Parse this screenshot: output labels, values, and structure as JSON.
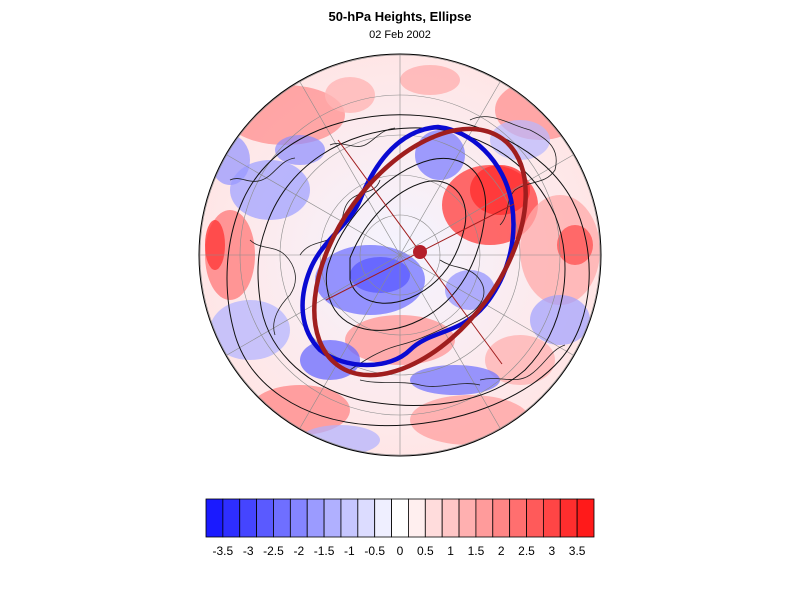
{
  "title": "50-hPa Heights, Ellipse",
  "date": "02 Feb 2002",
  "colorbar": {
    "colors": [
      "#1a1aff",
      "#2e2eff",
      "#4545ff",
      "#5a5aff",
      "#6f6fff",
      "#8585ff",
      "#9b9bff",
      "#b0b0ff",
      "#c6c6ff",
      "#dcdcff",
      "#efefff",
      "#ffffff",
      "#ffefef",
      "#ffdcdc",
      "#ffc6c6",
      "#ffb0b0",
      "#ff9b9b",
      "#ff8585",
      "#ff6f6f",
      "#ff5a5a",
      "#ff4545",
      "#ff2e2e",
      "#ff1a1a"
    ],
    "tick_labels": [
      "-3.5",
      "-3",
      "-2.5",
      "-2",
      "-1.5",
      "-1",
      "-0.5",
      "0",
      "0.5",
      "1",
      "1.5",
      "2",
      "2.5",
      "3",
      "3.5"
    ]
  },
  "ellipse": {
    "observed_color": "#0a0ad2",
    "fitted_color": "#a01e1e"
  }
}
